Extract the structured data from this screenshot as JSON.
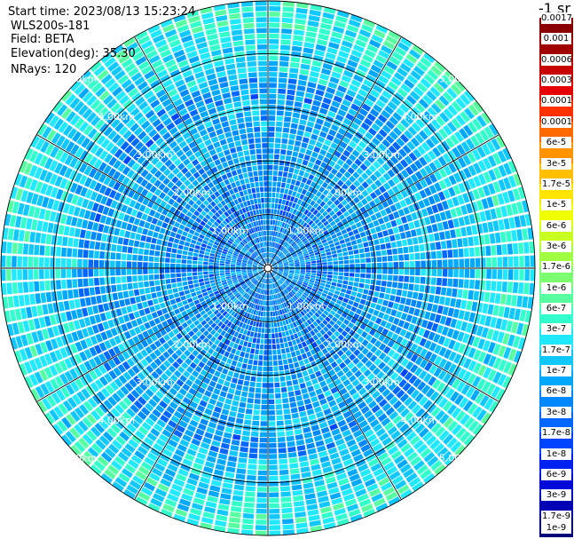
{
  "header": {
    "start_time": "Start time: 2023/08/13 15:23:24",
    "instrument": "WLS200s-181",
    "field": "Field: BETA",
    "elevation": "Elevation(deg): 35.30",
    "nrays": "NRays: 120"
  },
  "colorbar": {
    "title": "-1 sr",
    "colors": [
      "#8a0000",
      "#a00000",
      "#c80000",
      "#e60000",
      "#ff3000",
      "#ff6a00",
      "#ff9400",
      "#ffbe00",
      "#ffe400",
      "#f0ff00",
      "#c8ff20",
      "#a0ff40",
      "#7cff70",
      "#58ffa0",
      "#33ffcc",
      "#20e8ff",
      "#10c8ff",
      "#00a8ff",
      "#0088ff",
      "#0066ff",
      "#0044ff",
      "#0022f0",
      "#0008d8",
      "#0000b4",
      "#00007a"
    ],
    "labels": [
      "0.0017",
      "0.001",
      "0.0006",
      "0.0003",
      "0.00017",
      "0.0001",
      "6e-5",
      "3e-5",
      "1.7e-5",
      "1e-5",
      "6e-6",
      "3e-6",
      "1.7e-6",
      "1e-6",
      "6e-7",
      "3e-7",
      "1.7e-7",
      "1e-7",
      "6e-8",
      "3e-8",
      "1.7e-8",
      "1e-8",
      "6e-9",
      "3e-9",
      "1.7e-9",
      "1e-9"
    ]
  },
  "chart_data": {
    "type": "heatmap",
    "projection": "polar (PPI)",
    "n_rays": 120,
    "elevation_deg": 35.3,
    "field": "BETA",
    "units": "-1 sr",
    "scale": "log",
    "range_rings_km": [
      1.0,
      2.0,
      3.0,
      4.0,
      5.0
    ],
    "ring_labels": [
      "1.00km",
      "2.00km",
      "3.00km",
      "4.00km",
      "5.00km"
    ],
    "spokes_deg": [
      0,
      30,
      60,
      90,
      120,
      150,
      180,
      210,
      240,
      270,
      300,
      330
    ],
    "max_range_km": 5.0,
    "value_range": [
      1e-09,
      0.0017
    ],
    "typical_near_field": 3e-08,
    "typical_far_field": 3e-07
  }
}
